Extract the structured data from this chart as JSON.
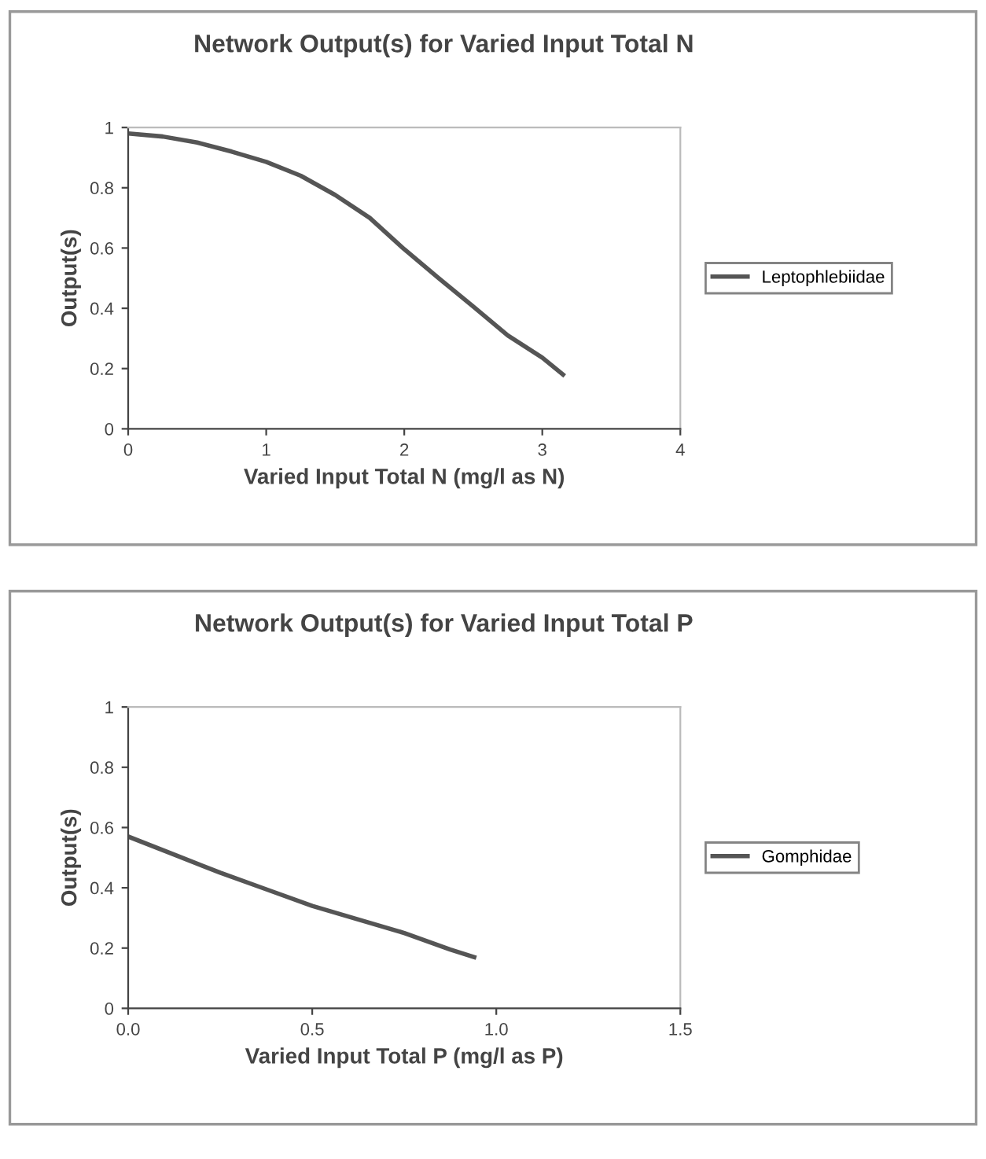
{
  "chart_data": [
    {
      "type": "line",
      "title": "Network Output(s) for Varied Input Total N",
      "xlabel": "Varied Input Total N (mg/l as N)",
      "ylabel": "Output(s)",
      "xlim": [
        0,
        4
      ],
      "xticks": [
        0,
        1,
        2,
        3,
        4
      ],
      "ylim": [
        0,
        1
      ],
      "yticks": [
        0,
        {
          "value": 0.2,
          "label": "0.2"
        },
        {
          "value": 0.4,
          "label": "0.4"
        },
        {
          "value": 0.6,
          "label": "0.6"
        },
        {
          "value": 0.8,
          "label": "0.8"
        },
        1
      ],
      "grid": false,
      "legend": "right",
      "marker": "none",
      "line_style": "solid",
      "series": [
        {
          "name": "Leptophlebiidae",
          "color": "#555555",
          "x": [
            0,
            0.25,
            0.5,
            0.75,
            1.0,
            1.25,
            1.5,
            1.75,
            2.0,
            2.25,
            2.5,
            2.75,
            3.0,
            3.15
          ],
          "values": [
            0.98,
            0.97,
            0.95,
            0.92,
            0.886,
            0.84,
            0.776,
            0.7,
            0.596,
            0.5,
            0.406,
            0.31,
            0.236,
            0.18
          ]
        }
      ]
    },
    {
      "type": "line",
      "title": "Network Output(s) for Varied Input Total P",
      "xlabel": "Varied Input Total P (mg/l as P)",
      "ylabel": "Output(s)",
      "xlim": [
        0,
        1.5
      ],
      "xticks": [
        {
          "value": 0,
          "label": "0.0"
        },
        0.5,
        {
          "value": 1,
          "label": "1.0"
        },
        1.5
      ],
      "ylim": [
        0,
        1
      ],
      "yticks": [
        0,
        {
          "value": 0.2,
          "label": "0.2"
        },
        {
          "value": 0.4,
          "label": "0.4"
        },
        {
          "value": 0.6,
          "label": "0.6"
        },
        {
          "value": 0.8,
          "label": "0.8"
        },
        1
      ],
      "grid": false,
      "legend": "right",
      "marker": "none",
      "line_style": "solid",
      "series": [
        {
          "name": "Gomphidae",
          "color": "#555555",
          "x": [
            0,
            0.125,
            0.25,
            0.375,
            0.5,
            0.625,
            0.75,
            0.875,
            0.94
          ],
          "values": [
            0.57,
            0.51,
            0.45,
            0.395,
            0.34,
            0.295,
            0.25,
            0.195,
            0.17
          ]
        }
      ]
    }
  ]
}
